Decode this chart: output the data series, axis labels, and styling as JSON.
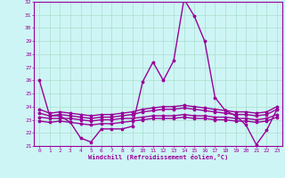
{
  "title": "",
  "xlabel": "Windchill (Refroidissement éolien,°C)",
  "ylabel": "",
  "xlim": [
    -0.5,
    23.5
  ],
  "ylim": [
    21,
    32
  ],
  "yticks": [
    21,
    22,
    23,
    24,
    25,
    26,
    27,
    28,
    29,
    30,
    31,
    32
  ],
  "xticks": [
    0,
    1,
    2,
    3,
    4,
    5,
    6,
    7,
    8,
    9,
    10,
    11,
    12,
    13,
    14,
    15,
    16,
    17,
    18,
    19,
    20,
    21,
    22,
    23
  ],
  "background_color": "#cef5f5",
  "grid_color": "#aaddcc",
  "line_color": "#990099",
  "line_width": 1.0,
  "marker": "*",
  "marker_size": 2.5,
  "series": [
    [
      26.0,
      23.3,
      23.3,
      22.8,
      21.6,
      21.3,
      22.3,
      22.3,
      22.3,
      22.5,
      25.9,
      27.4,
      26.0,
      27.5,
      32.2,
      30.9,
      29.0,
      24.7,
      23.7,
      23.3,
      22.6,
      21.1,
      22.2,
      23.8
    ],
    [
      23.5,
      23.3,
      23.4,
      23.3,
      23.2,
      23.1,
      23.2,
      23.2,
      23.3,
      23.4,
      23.6,
      23.7,
      23.8,
      23.8,
      23.9,
      23.8,
      23.7,
      23.6,
      23.5,
      23.4,
      23.4,
      23.3,
      23.4,
      23.8
    ],
    [
      23.2,
      23.1,
      23.1,
      23.1,
      23.0,
      22.9,
      23.0,
      23.0,
      23.1,
      23.1,
      23.2,
      23.3,
      23.3,
      23.3,
      23.4,
      23.3,
      23.3,
      23.2,
      23.2,
      23.1,
      23.1,
      23.0,
      23.1,
      23.4
    ],
    [
      23.8,
      23.5,
      23.6,
      23.5,
      23.4,
      23.3,
      23.4,
      23.4,
      23.5,
      23.6,
      23.8,
      23.9,
      24.0,
      24.0,
      24.1,
      24.0,
      23.9,
      23.8,
      23.7,
      23.6,
      23.6,
      23.5,
      23.6,
      24.0
    ],
    [
      22.9,
      22.8,
      22.9,
      22.8,
      22.7,
      22.6,
      22.7,
      22.7,
      22.8,
      22.9,
      23.0,
      23.1,
      23.1,
      23.1,
      23.2,
      23.1,
      23.1,
      23.0,
      23.0,
      22.9,
      22.9,
      22.8,
      22.9,
      23.2
    ]
  ]
}
